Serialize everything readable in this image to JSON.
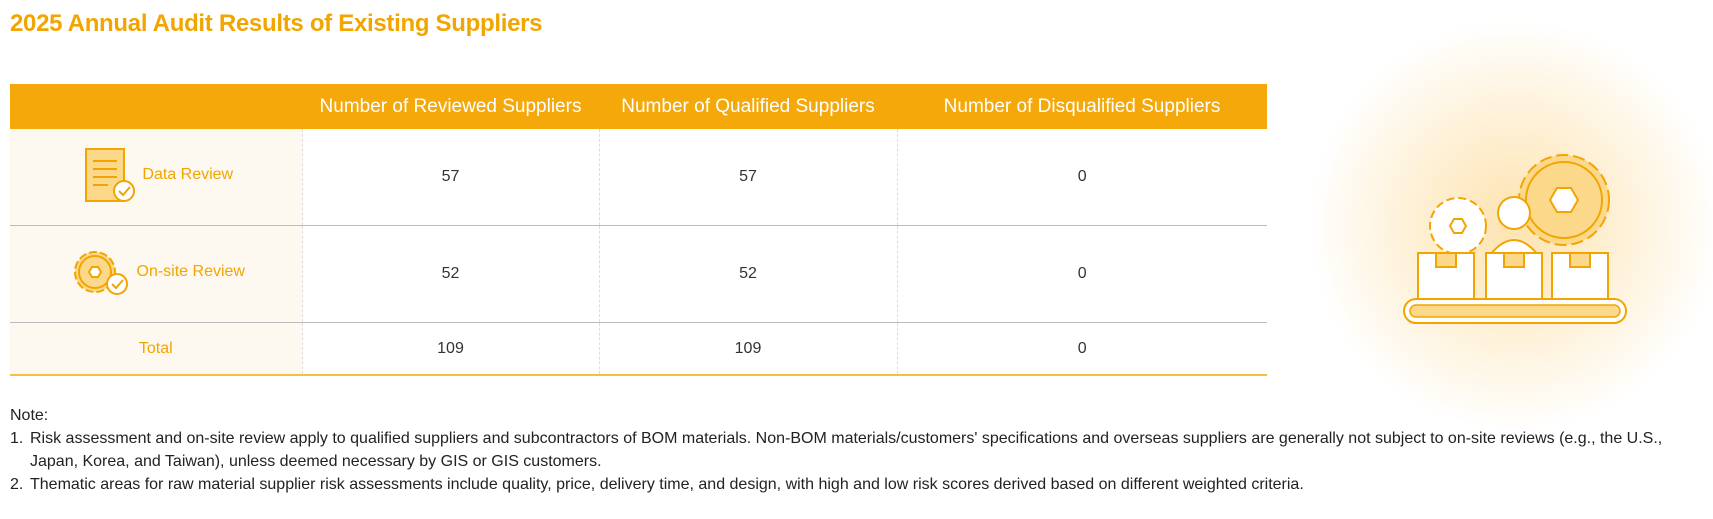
{
  "title": "2025 Annual Audit Results of Existing Suppliers",
  "table": {
    "columns": [
      "Number of Reviewed Suppliers",
      "Number of Qualified Suppliers",
      "Number of Disqualified Suppliers"
    ],
    "rows": [
      [
        "Data Review",
        57,
        57,
        0
      ],
      [
        "On-site Review",
        52,
        52,
        0
      ],
      [
        "Total",
        109,
        109,
        0
      ]
    ]
  },
  "notes": {
    "heading": "Note:",
    "items": [
      {
        "number": "1.",
        "text": "Risk assessment and on-site review apply to qualified suppliers and subcontractors of BOM materials. Non-BOM materials/customers' specifications and overseas suppliers are generally not subject to on-site reviews (e.g., the U.S., Japan, Korea, and Taiwan), unless deemed necessary by GIS or GIS customers."
      },
      {
        "number": "2.",
        "text": "Thematic areas for raw material supplier risk assessments include quality, price, delivery time, and design, with high and low risk scores derived based on different weighted criteria."
      }
    ]
  }
}
